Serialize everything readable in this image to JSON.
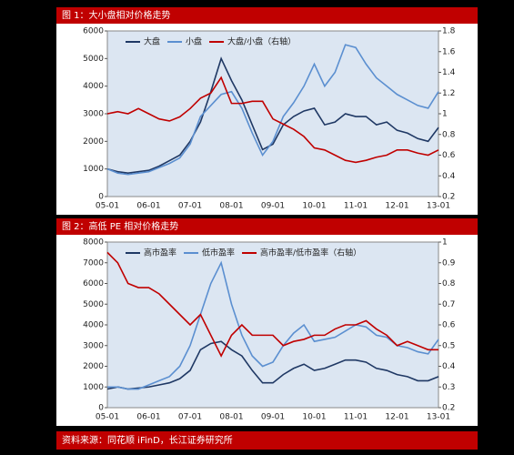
{
  "chart_data": [
    {
      "type": "line",
      "title": "图 1：大小盘相对价格走势",
      "categories": [
        "05-01",
        null,
        null,
        null,
        "06-01",
        null,
        null,
        null,
        "07-01",
        null,
        null,
        null,
        "08-01",
        null,
        null,
        null,
        "09-01",
        null,
        null,
        null,
        "10-01",
        null,
        null,
        null,
        "11-01",
        null,
        null,
        null,
        "12-01",
        null,
        null,
        null,
        "13-01"
      ],
      "series": [
        {
          "name": "大盘",
          "color": "#1f3864",
          "values": [
            1000,
            900,
            850,
            900,
            950,
            1100,
            1300,
            1500,
            2000,
            2700,
            3800,
            5000,
            4200,
            3500,
            2600,
            1700,
            1900,
            2600,
            2900,
            3100,
            3200,
            2600,
            2700,
            3000,
            2900,
            2900,
            2600,
            2700,
            2400,
            2300,
            2100,
            2000,
            2500
          ]
        },
        {
          "name": "小盘",
          "color": "#5b8fd0",
          "values": [
            1000,
            850,
            800,
            850,
            900,
            1050,
            1200,
            1400,
            1900,
            2900,
            3300,
            3700,
            3800,
            3200,
            2300,
            1500,
            2000,
            2900,
            3400,
            4000,
            4800,
            4000,
            4500,
            5500,
            5400,
            4800,
            4300,
            4000,
            3700,
            3500,
            3300,
            3200,
            3800
          ]
        },
        {
          "name": "大盘/小盘（右轴）",
          "color": "#c00000",
          "axis": "y2",
          "values": [
            1.0,
            1.02,
            1.0,
            1.05,
            1.0,
            0.95,
            0.93,
            0.97,
            1.05,
            1.15,
            1.2,
            1.35,
            1.1,
            1.1,
            1.12,
            1.12,
            0.95,
            0.9,
            0.85,
            0.78,
            0.67,
            0.65,
            0.6,
            0.55,
            0.53,
            0.55,
            0.58,
            0.6,
            0.65,
            0.65,
            0.62,
            0.6,
            0.65
          ]
        }
      ],
      "ylim": [
        0,
        6000
      ],
      "yticks": [
        0,
        1000,
        2000,
        3000,
        4000,
        5000,
        6000
      ],
      "y2lim": [
        0.2,
        1.8
      ],
      "y2ticks": [
        0.2,
        0.4,
        0.6,
        0.8,
        1,
        1.2,
        1.4,
        1.6,
        1.8
      ],
      "legend": "top",
      "background": "#dce6f2"
    },
    {
      "type": "line",
      "title": "图 2：高低 PE 相对价格走势",
      "categories": [
        "05-01",
        null,
        null,
        null,
        "06-01",
        null,
        null,
        null,
        "07-01",
        null,
        null,
        null,
        "08-01",
        null,
        null,
        null,
        "09-01",
        null,
        null,
        null,
        "10-01",
        null,
        null,
        null,
        "11-01",
        null,
        null,
        null,
        "12-01",
        null,
        null,
        null,
        "13-01"
      ],
      "series": [
        {
          "name": "高市盈率",
          "color": "#1f3864",
          "values": [
            900,
            1000,
            900,
            950,
            1000,
            1100,
            1200,
            1400,
            1800,
            2800,
            3100,
            3200,
            2800,
            2500,
            1800,
            1200,
            1200,
            1600,
            1900,
            2100,
            1800,
            1900,
            2100,
            2300,
            2300,
            2200,
            1900,
            1800,
            1600,
            1500,
            1300,
            1300,
            1500
          ]
        },
        {
          "name": "低市盈率",
          "color": "#5b8fd0",
          "values": [
            1000,
            1000,
            900,
            900,
            1100,
            1300,
            1500,
            2000,
            3000,
            4500,
            6000,
            7000,
            5000,
            3500,
            2500,
            2000,
            2200,
            3000,
            3600,
            4000,
            3200,
            3300,
            3400,
            3700,
            4000,
            3900,
            3500,
            3400,
            3000,
            2900,
            2700,
            2600,
            3300
          ]
        },
        {
          "name": "高市盈率/低市盈率（右轴）",
          "color": "#c00000",
          "axis": "y2",
          "values": [
            0.95,
            0.9,
            0.8,
            0.78,
            0.78,
            0.75,
            0.7,
            0.65,
            0.6,
            0.65,
            0.55,
            0.45,
            0.55,
            0.6,
            0.55,
            0.55,
            0.55,
            0.5,
            0.52,
            0.53,
            0.55,
            0.55,
            0.58,
            0.6,
            0.6,
            0.62,
            0.58,
            0.55,
            0.5,
            0.52,
            0.5,
            0.48,
            0.48
          ]
        }
      ],
      "ylim": [
        0,
        8000
      ],
      "yticks": [
        0,
        1000,
        2000,
        3000,
        4000,
        5000,
        6000,
        7000,
        8000
      ],
      "y2lim": [
        0.2,
        1
      ],
      "y2ticks": [
        0.2,
        0.3,
        0.4,
        0.5,
        0.6,
        0.7,
        0.8,
        0.9,
        1
      ],
      "legend": "top",
      "background": "#dce6f2"
    }
  ],
  "source": "资料来源：同花顺 iFinD，长江证券研究所"
}
